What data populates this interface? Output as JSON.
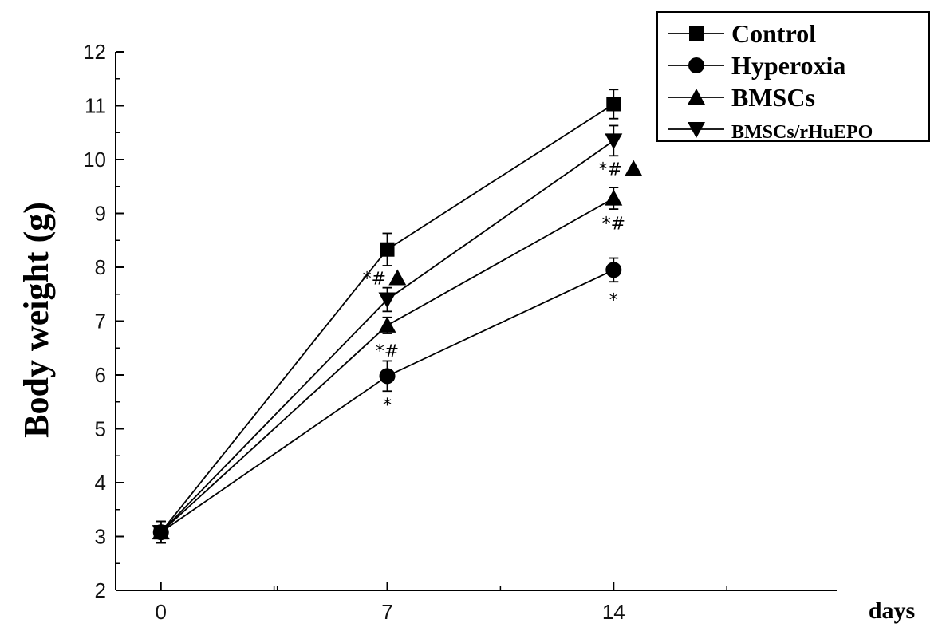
{
  "chart_data": {
    "type": "line",
    "xlabel": "days",
    "ylabel": "Body weight (g)",
    "x": [
      0,
      7,
      14
    ],
    "xticks": [
      "0",
      "7",
      "14"
    ],
    "xlim": [
      -1.4,
      20.9
    ],
    "ylim": [
      2,
      12
    ],
    "yticks": [
      "2",
      "3",
      "4",
      "5",
      "6",
      "7",
      "8",
      "9",
      "10",
      "11",
      "12"
    ],
    "legend_position": "top-right",
    "series": [
      {
        "name": "Control",
        "marker": "square",
        "values": [
          3.08,
          8.33,
          11.03
        ],
        "errors": [
          0.2,
          0.3,
          0.27
        ]
      },
      {
        "name": "Hyperoxia",
        "marker": "circle",
        "values": [
          3.08,
          5.98,
          7.95
        ],
        "errors": [
          0.2,
          0.28,
          0.22
        ]
      },
      {
        "name": "BMSCs",
        "marker": "triangle-up",
        "values": [
          3.08,
          6.92,
          9.28
        ],
        "errors": [
          0.2,
          0.15,
          0.2
        ]
      },
      {
        "name": "BMSCs/rHuEPO",
        "marker": "triangle-down",
        "values": [
          3.08,
          7.4,
          10.35
        ],
        "errors": [
          0.2,
          0.22,
          0.28
        ]
      }
    ],
    "annotations": [
      {
        "text": "*",
        "x": 7,
        "y": 5.45
      },
      {
        "text": "*#",
        "x": 7,
        "y": 6.45
      },
      {
        "text": "*#",
        "x": 6.6,
        "y": 7.8,
        "marker": "triangle-up"
      },
      {
        "text": "*",
        "x": 14,
        "y": 7.4
      },
      {
        "text": "*#",
        "x": 14,
        "y": 8.82
      },
      {
        "text": "*#",
        "x": 13.9,
        "y": 9.83,
        "marker": "triangle-up"
      }
    ]
  }
}
